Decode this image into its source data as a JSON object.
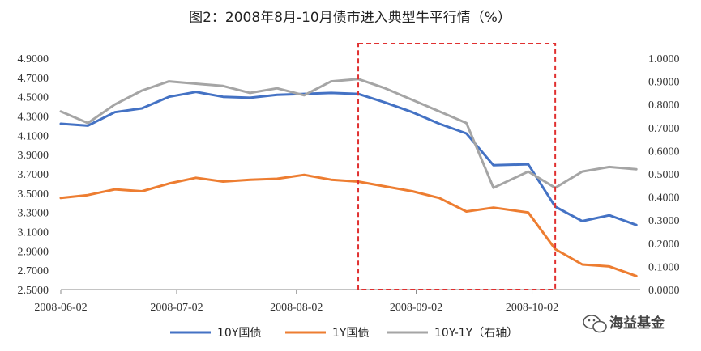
{
  "chart_data": {
    "type": "line",
    "title": "图2：2008年8月-10月债市进入典型牛平行情（%）",
    "x_dates": [
      "2008-06-02",
      "2008-06-09",
      "2008-06-16",
      "2008-06-23",
      "2008-06-30",
      "2008-07-07",
      "2008-07-14",
      "2008-07-21",
      "2008-07-28",
      "2008-08-04",
      "2008-08-11",
      "2008-08-18",
      "2008-08-25",
      "2008-09-01",
      "2008-09-08",
      "2008-09-15",
      "2008-09-22",
      "2008-10-01",
      "2008-10-08",
      "2008-10-15",
      "2008-10-22",
      "2008-10-29"
    ],
    "x_ticks": [
      "2008-06-02",
      "2008-07-02",
      "2008-08-02",
      "2008-09-02",
      "2008-10-02"
    ],
    "left_axis": {
      "ticks": [
        "2.5000",
        "2.7000",
        "2.9000",
        "3.1000",
        "3.3000",
        "3.5000",
        "3.7000",
        "3.9000",
        "4.1000",
        "4.3000",
        "4.5000",
        "4.7000",
        "4.9000"
      ],
      "min": 2.5,
      "max": 4.9
    },
    "right_axis": {
      "ticks": [
        "0.0000",
        "0.1000",
        "0.2000",
        "0.3000",
        "0.4000",
        "0.5000",
        "0.6000",
        "0.7000",
        "0.8000",
        "0.9000",
        "1.0000"
      ],
      "min": 0.0,
      "max": 1.0,
      "label": "右轴"
    },
    "series": [
      {
        "name": "10Y国债",
        "axis": "left",
        "color": "#4472C4",
        "values": [
          4.22,
          4.2,
          4.34,
          4.38,
          4.5,
          4.55,
          4.5,
          4.49,
          4.52,
          4.53,
          4.54,
          4.53,
          4.44,
          4.34,
          4.22,
          4.12,
          3.79,
          3.8,
          3.36,
          3.21,
          3.27,
          3.17
        ]
      },
      {
        "name": "1Y国债",
        "axis": "left",
        "color": "#ED7D31",
        "values": [
          3.45,
          3.48,
          3.54,
          3.52,
          3.6,
          3.66,
          3.62,
          3.64,
          3.65,
          3.69,
          3.64,
          3.62,
          3.57,
          3.52,
          3.45,
          3.31,
          3.35,
          3.3,
          2.92,
          2.76,
          2.74,
          2.64
        ]
      },
      {
        "name": "10Y-1Y（右轴）",
        "axis": "right",
        "color": "#A5A5A5",
        "values": [
          0.77,
          0.72,
          0.8,
          0.86,
          0.9,
          0.89,
          0.88,
          0.85,
          0.87,
          0.84,
          0.9,
          0.91,
          0.87,
          0.82,
          0.77,
          0.72,
          0.44,
          0.51,
          0.44,
          0.51,
          0.53,
          0.52
        ]
      }
    ],
    "highlight_box": {
      "x_start": "2008-08-18",
      "x_end": "2008-10-08",
      "color": "#E03030",
      "style": "dashed"
    },
    "grid": false,
    "legend_position": "bottom"
  },
  "watermark": {
    "text": "海益基金",
    "icon": "wechat-icon"
  }
}
